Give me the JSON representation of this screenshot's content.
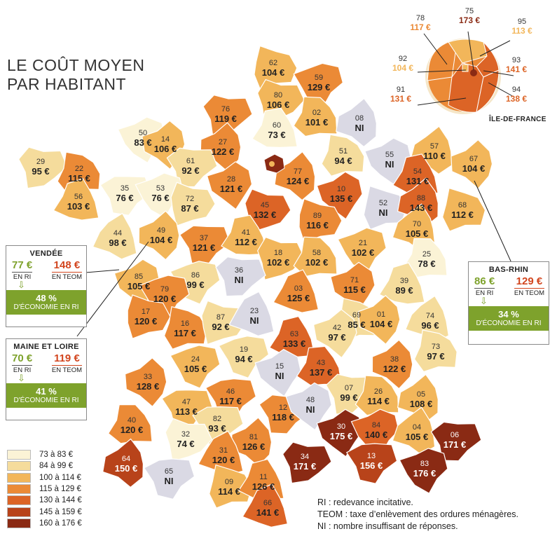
{
  "title": [
    "LE COÛT MOYEN",
    "PAR HABITANT"
  ],
  "colors": {
    "c1": "#fbf3d6",
    "c2": "#f5dc9c",
    "c3": "#f2b65a",
    "c4": "#eb8a36",
    "c5": "#dc6426",
    "c6": "#b8431a",
    "c7": "#8a2a14",
    "ni": "#dad9e4",
    "accent_ri": "#7ea22c",
    "accent_teom": "#d2451e"
  },
  "legend": [
    {
      "label": "73 à 83 €",
      "color": "#fbf3d6"
    },
    {
      "label": "84 à 99 €",
      "color": "#f5dc9c"
    },
    {
      "label": "100 à 114 €",
      "color": "#f2b65a"
    },
    {
      "label": "115 à 129 €",
      "color": "#eb8a36"
    },
    {
      "label": "130 à 144 €",
      "color": "#dc6426"
    },
    {
      "label": "145 à 159 €",
      "color": "#b8431a"
    },
    {
      "label": "160 à 176 €",
      "color": "#8a2a14"
    }
  ],
  "notes": [
    "RI : redevance incitative.",
    "TEOM : taxe d’enlèvement des ordures ménagères.",
    "NI : nombre insuffisant de réponses."
  ],
  "idf_label": "ÎLE-DE-FRANCE",
  "idf_departments": [
    {
      "num": "78",
      "value": "117 €"
    },
    {
      "num": "75",
      "value": "173 €"
    },
    {
      "num": "95",
      "value": "113 €"
    },
    {
      "num": "92",
      "value": "104 €"
    },
    {
      "num": "93",
      "value": "141 €"
    },
    {
      "num": "91",
      "value": "131 €"
    },
    {
      "num": "94",
      "value": "138 €"
    }
  ],
  "callouts": {
    "vendee": {
      "name": "VENDÉE",
      "ri_value": "77 €",
      "ri_label": "EN RI",
      "teom_value": "148 €",
      "teom_label": "EN TEOM",
      "saving_pct": "48 %",
      "saving_label": "D'ÉCONOMIE EN RI"
    },
    "maine_et_loire": {
      "name": "MAINE ET LOIRE",
      "ri_value": "70 €",
      "ri_label": "EN RI",
      "teom_value": "119 €",
      "teom_label": "EN TEOM",
      "saving_pct": "41 %",
      "saving_label": "D'ÉCONOMIE EN RI"
    },
    "bas_rhin": {
      "name": "BAS-RHIN",
      "ri_value": "86 €",
      "ri_label": "EN RI",
      "teom_value": "129 €",
      "teom_label": "EN TEOM",
      "saving_pct": "34 %",
      "saving_label": "D'ÉCONOMIE EN RI"
    }
  },
  "departments": [
    {
      "num": "62",
      "value": "104 €",
      "cls": "c3"
    },
    {
      "num": "59",
      "value": "129 €",
      "cls": "c4"
    },
    {
      "num": "80",
      "value": "106 €",
      "cls": "c3"
    },
    {
      "num": "02",
      "value": "101 €",
      "cls": "c3"
    },
    {
      "num": "08",
      "value": "NI",
      "cls": "ni"
    },
    {
      "num": "76",
      "value": "119 €",
      "cls": "c4"
    },
    {
      "num": "60",
      "value": "73 €",
      "cls": "c1"
    },
    {
      "num": "50",
      "value": "83 €",
      "cls": "c1"
    },
    {
      "num": "14",
      "value": "106 €",
      "cls": "c3"
    },
    {
      "num": "27",
      "value": "122 €",
      "cls": "c4"
    },
    {
      "num": "51",
      "value": "94 €",
      "cls": "c2"
    },
    {
      "num": "55",
      "value": "NI",
      "cls": "ni"
    },
    {
      "num": "57",
      "value": "110 €",
      "cls": "c3"
    },
    {
      "num": "67",
      "value": "104 €",
      "cls": "c3"
    },
    {
      "num": "29",
      "value": "95 €",
      "cls": "c2"
    },
    {
      "num": "22",
      "value": "115 €",
      "cls": "c4"
    },
    {
      "num": "61",
      "value": "92 €",
      "cls": "c2"
    },
    {
      "num": "28",
      "value": "121 €",
      "cls": "c4"
    },
    {
      "num": "77",
      "value": "124 €",
      "cls": "c4"
    },
    {
      "num": "54",
      "value": "131 €",
      "cls": "c5"
    },
    {
      "num": "35",
      "value": "76 €",
      "cls": "c1"
    },
    {
      "num": "53",
      "value": "76 €",
      "cls": "c1"
    },
    {
      "num": "56",
      "value": "103 €",
      "cls": "c3"
    },
    {
      "num": "72",
      "value": "87 €",
      "cls": "c2"
    },
    {
      "num": "10",
      "value": "135 €",
      "cls": "c5"
    },
    {
      "num": "52",
      "value": "NI",
      "cls": "ni"
    },
    {
      "num": "88",
      "value": "143 €",
      "cls": "c5"
    },
    {
      "num": "45",
      "value": "132 €",
      "cls": "c5"
    },
    {
      "num": "68",
      "value": "112 €",
      "cls": "c3"
    },
    {
      "num": "89",
      "value": "116 €",
      "cls": "c4"
    },
    {
      "num": "44",
      "value": "98 €",
      "cls": "c2"
    },
    {
      "num": "49",
      "value": "104 €",
      "cls": "c3"
    },
    {
      "num": "37",
      "value": "121 €",
      "cls": "c4"
    },
    {
      "num": "41",
      "value": "112 €",
      "cls": "c3"
    },
    {
      "num": "70",
      "value": "105 €",
      "cls": "c3"
    },
    {
      "num": "21",
      "value": "102 €",
      "cls": "c3"
    },
    {
      "num": "18",
      "value": "102 €",
      "cls": "c3"
    },
    {
      "num": "58",
      "value": "102 €",
      "cls": "c3"
    },
    {
      "num": "25",
      "value": "78 €",
      "cls": "c1"
    },
    {
      "num": "85",
      "value": "105 €",
      "cls": "c3"
    },
    {
      "num": "86",
      "value": "99 €",
      "cls": "c2"
    },
    {
      "num": "36",
      "value": "NI",
      "cls": "ni"
    },
    {
      "num": "79",
      "value": "120 €",
      "cls": "c4"
    },
    {
      "num": "71",
      "value": "115 €",
      "cls": "c4"
    },
    {
      "num": "39",
      "value": "89 €",
      "cls": "c2"
    },
    {
      "num": "03",
      "value": "125 €",
      "cls": "c4"
    },
    {
      "num": "17",
      "value": "120 €",
      "cls": "c4"
    },
    {
      "num": "16",
      "value": "117 €",
      "cls": "c4"
    },
    {
      "num": "87",
      "value": "92 €",
      "cls": "c2"
    },
    {
      "num": "23",
      "value": "NI",
      "cls": "ni"
    },
    {
      "num": "69",
      "value": "85 €",
      "cls": "c2"
    },
    {
      "num": "01",
      "value": "104 €",
      "cls": "c3"
    },
    {
      "num": "74",
      "value": "96 €",
      "cls": "c2"
    },
    {
      "num": "42",
      "value": "97 €",
      "cls": "c2"
    },
    {
      "num": "63",
      "value": "133 €",
      "cls": "c5"
    },
    {
      "num": "73",
      "value": "97 €",
      "cls": "c2"
    },
    {
      "num": "19",
      "value": "94 €",
      "cls": "c2"
    },
    {
      "num": "24",
      "value": "105 €",
      "cls": "c3"
    },
    {
      "num": "38",
      "value": "122 €",
      "cls": "c4"
    },
    {
      "num": "33",
      "value": "128 €",
      "cls": "c4"
    },
    {
      "num": "15",
      "value": "NI",
      "cls": "ni"
    },
    {
      "num": "43",
      "value": "137 €",
      "cls": "c5"
    },
    {
      "num": "07",
      "value": "99 €",
      "cls": "c2"
    },
    {
      "num": "26",
      "value": "114 €",
      "cls": "c3"
    },
    {
      "num": "05",
      "value": "108 €",
      "cls": "c3"
    },
    {
      "num": "46",
      "value": "117 €",
      "cls": "c4"
    },
    {
      "num": "47",
      "value": "113 €",
      "cls": "c3"
    },
    {
      "num": "12",
      "value": "118 €",
      "cls": "c4"
    },
    {
      "num": "48",
      "value": "NI",
      "cls": "ni"
    },
    {
      "num": "40",
      "value": "120 €",
      "cls": "c4"
    },
    {
      "num": "82",
      "value": "93 €",
      "cls": "c2"
    },
    {
      "num": "30",
      "value": "175 €",
      "cls": "c7"
    },
    {
      "num": "84",
      "value": "140 €",
      "cls": "c5"
    },
    {
      "num": "04",
      "value": "105 €",
      "cls": "c3"
    },
    {
      "num": "06",
      "value": "171 €",
      "cls": "c7"
    },
    {
      "num": "32",
      "value": "74 €",
      "cls": "c1"
    },
    {
      "num": "81",
      "value": "126 €",
      "cls": "c4"
    },
    {
      "num": "31",
      "value": "120 €",
      "cls": "c4"
    },
    {
      "num": "34",
      "value": "171 €",
      "cls": "c7"
    },
    {
      "num": "13",
      "value": "156 €",
      "cls": "c6"
    },
    {
      "num": "64",
      "value": "150 €",
      "cls": "c6"
    },
    {
      "num": "65",
      "value": "NI",
      "cls": "ni"
    },
    {
      "num": "09",
      "value": "114 €",
      "cls": "c3"
    },
    {
      "num": "11",
      "value": "126 €",
      "cls": "c4"
    },
    {
      "num": "83",
      "value": "176 €",
      "cls": "c7"
    },
    {
      "num": "66",
      "value": "141 €",
      "cls": "c5"
    }
  ]
}
